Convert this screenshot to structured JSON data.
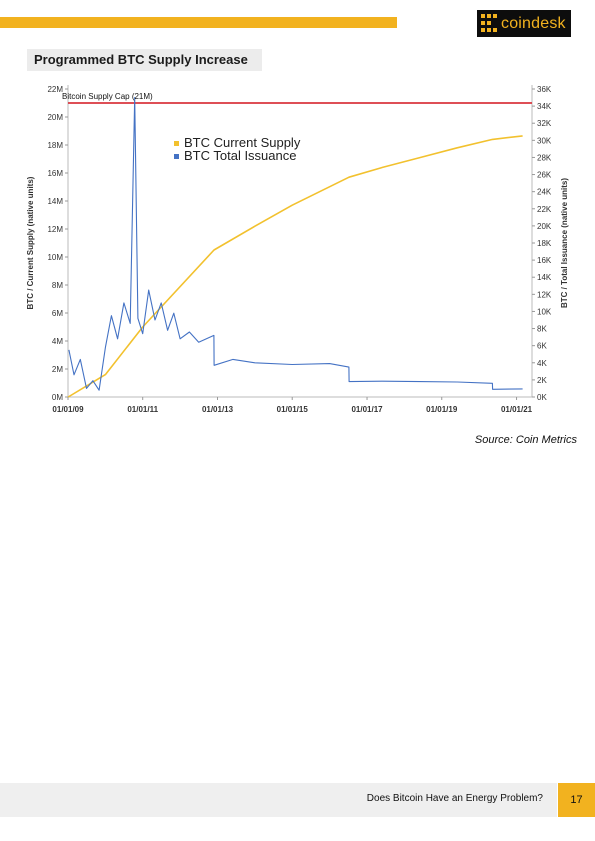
{
  "header": {
    "logo_text": "coindesk",
    "accent_color": "#f2b21f"
  },
  "chart_title": "Programmed BTC Supply Increase",
  "chart_data": {
    "type": "line",
    "title": "Programmed BTC Supply Increase",
    "xlabel": "",
    "ylabel_left": "BTC / Current Supply (native units)",
    "ylabel_right": "BTC / Total Issuance (native units)",
    "ylim_left": [
      0,
      22000000
    ],
    "ylim_right": [
      0,
      36000
    ],
    "x_range": [
      "2009-01-01",
      "2021-06-01"
    ],
    "x_ticks": [
      "01/01/09",
      "01/01/11",
      "01/01/13",
      "01/01/15",
      "01/01/17",
      "01/01/19",
      "01/01/21"
    ],
    "y_ticks_left": [
      "0M",
      "2M",
      "4M",
      "6M",
      "8M",
      "10M",
      "12M",
      "14M",
      "16M",
      "18M",
      "20M",
      "22M"
    ],
    "y_ticks_right": [
      "0K",
      "2K",
      "4K",
      "6K",
      "8K",
      "10K",
      "12K",
      "14K",
      "16K",
      "18K",
      "20K",
      "22K",
      "24K",
      "26K",
      "28K",
      "30K",
      "32K",
      "34K",
      "36K"
    ],
    "legend_position": "top-center",
    "grid": false,
    "reference_line": {
      "label": "Bitcoin Supply Cap (21M)",
      "value": 21000000,
      "color": "#d9363e"
    },
    "series": [
      {
        "name": "BTC Current Supply",
        "axis": "left",
        "color": "#f2c12e",
        "x": [
          "2009-01-03",
          "2010-01-01",
          "2011-01-01",
          "2012-11-28",
          "2014-01-01",
          "2015-01-01",
          "2016-07-09",
          "2017-06-01",
          "2018-06-01",
          "2019-06-01",
          "2020-05-11",
          "2021-03-01"
        ],
        "y": [
          0,
          1600000,
          5000000,
          10500000,
          12200000,
          13700000,
          15700000,
          16400000,
          17100000,
          17800000,
          18400000,
          18650000
        ]
      },
      {
        "name": "BTC Total Issuance",
        "axis": "right",
        "color": "#4472c4",
        "x": [
          "2009-01-10",
          "2009-03-01",
          "2009-05-01",
          "2009-07-01",
          "2009-09-01",
          "2009-11-01",
          "2010-01-01",
          "2010-03-01",
          "2010-05-01",
          "2010-07-01",
          "2010-09-01",
          "2010-10-15",
          "2010-11-15",
          "2011-01-01",
          "2011-03-01",
          "2011-05-01",
          "2011-07-01",
          "2011-09-01",
          "2011-11-01",
          "2012-01-01",
          "2012-04-01",
          "2012-07-01",
          "2012-11-27",
          "2012-11-29",
          "2013-06-01",
          "2014-01-01",
          "2015-01-01",
          "2016-01-01",
          "2016-07-08",
          "2016-07-10",
          "2017-06-01",
          "2018-06-01",
          "2019-06-01",
          "2020-05-10",
          "2020-05-12",
          "2021-03-01"
        ],
        "y": [
          5500,
          2600,
          4400,
          1000,
          1900,
          800,
          5800,
          9500,
          6800,
          11000,
          8600,
          35000,
          9200,
          7400,
          12500,
          9000,
          11000,
          7800,
          9800,
          6800,
          7600,
          6400,
          7200,
          3700,
          4400,
          4000,
          3800,
          3900,
          3500,
          1800,
          1850,
          1800,
          1750,
          1600,
          900,
          950
        ]
      }
    ]
  },
  "source": "Source: Coin Metrics",
  "footer": {
    "title": "Does Bitcoin Have an Energy Problem?",
    "page_number": "17"
  }
}
